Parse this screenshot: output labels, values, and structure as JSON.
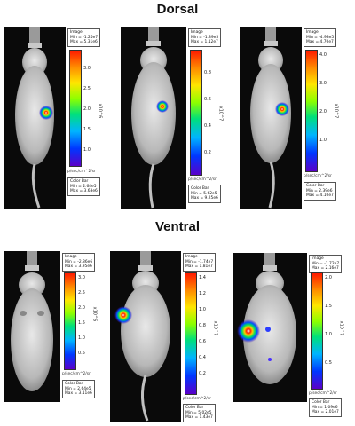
{
  "titles": {
    "dorsal": "Dorsal",
    "ventral": "Ventral"
  },
  "units": "p/sec/cm^2/sr",
  "labels": {
    "image": "Image",
    "color_bar": "Color Bar"
  },
  "panels": [
    {
      "image_min": "Min = -1.25e7",
      "image_max": "Max = 5.31e6",
      "colorbar_min": "Min = 2.64e5",
      "colorbar_max": "Max = 3.63e6",
      "ticks": [
        "3.0",
        "2.5",
        "2.0",
        "1.5",
        "1.0"
      ],
      "exponent": "x10^6"
    },
    {
      "image_min": "Min = -1.89e5",
      "image_max": "Max = 1.12e7",
      "colorbar_min": "Min = 5.62e5",
      "colorbar_max": "Max = 9.25e6",
      "ticks": [
        "0.8",
        "0.6",
        "0.4",
        "0.2"
      ],
      "exponent": "x10^7"
    },
    {
      "image_min": "Min = -4.93e5",
      "image_max": "Max = 4.70e7",
      "colorbar_min": "Min = 2.39e6",
      "colorbar_max": "Max = 4.10e7",
      "ticks": [
        "4.0",
        "3.0",
        "2.0",
        "1.0"
      ],
      "exponent": "x10^7"
    },
    {
      "image_min": "Min = -2.86e6",
      "image_max": "Max = 3.95e6",
      "colorbar_min": "Min = 2.64e5",
      "colorbar_max": "Max = 3.11e6",
      "ticks": [
        "3.0",
        "2.5",
        "2.0",
        "1.5",
        "1.0",
        "0.5"
      ],
      "exponent": "x10^6"
    },
    {
      "image_min": "Min = -1.74e7",
      "image_max": "Max = 1.81e7",
      "colorbar_min": "Min = 5.02e5",
      "colorbar_max": "Max = 1.43e7",
      "ticks": [
        "1.4",
        "1.2",
        "1.0",
        "0.8",
        "0.6",
        "0.4",
        "0.2"
      ],
      "exponent": "x10^7"
    },
    {
      "image_min": "Min = -1.72e7",
      "image_max": "Max = 2.16e7",
      "colorbar_min": "Min = 1.09e6",
      "colorbar_max": "Max = 2.01e7",
      "ticks": [
        "2.0",
        "1.5",
        "1.0",
        "0.5"
      ],
      "exponent": "x10^7"
    }
  ]
}
